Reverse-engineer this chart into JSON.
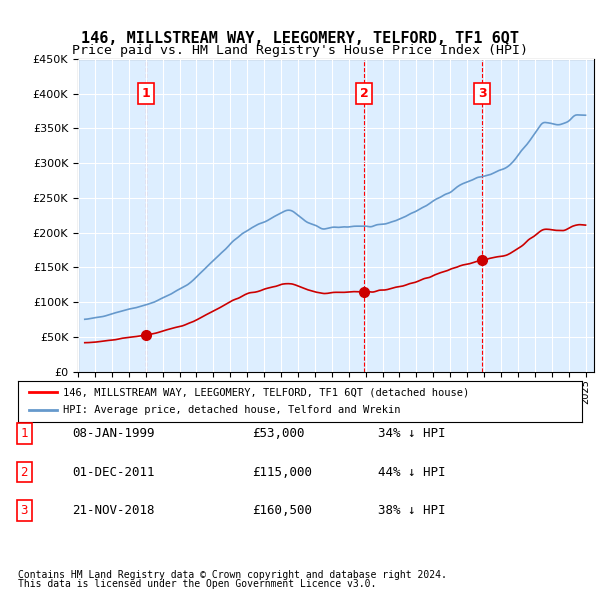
{
  "title": "146, MILLSTREAM WAY, LEEGOMERY, TELFORD, TF1 6QT",
  "subtitle": "Price paid vs. HM Land Registry's House Price Index (HPI)",
  "footer1": "Contains HM Land Registry data © Crown copyright and database right 2024.",
  "footer2": "This data is licensed under the Open Government Licence v3.0.",
  "legend1": "146, MILLSTREAM WAY, LEEGOMERY, TELFORD, TF1 6QT (detached house)",
  "legend2": "HPI: Average price, detached house, Telford and Wrekin",
  "transactions": [
    {
      "num": 1,
      "date": "08-JAN-1999",
      "price": 53000,
      "hpi_pct": "34% ↓ HPI",
      "year": 1999.03
    },
    {
      "num": 2,
      "date": "01-DEC-2011",
      "price": 115000,
      "hpi_pct": "44% ↓ HPI",
      "year": 2011.92
    },
    {
      "num": 3,
      "date": "21-NOV-2018",
      "price": 160500,
      "hpi_pct": "38% ↓ HPI",
      "year": 2018.89
    }
  ],
  "hpi_color": "#6699cc",
  "price_color": "#cc0000",
  "dashed_color": "#cc0000",
  "background_color": "#ddeeff",
  "plot_bg": "#ddeeff",
  "ylim": [
    0,
    450000
  ],
  "xlim_start": 1995.0,
  "xlim_end": 2025.5
}
